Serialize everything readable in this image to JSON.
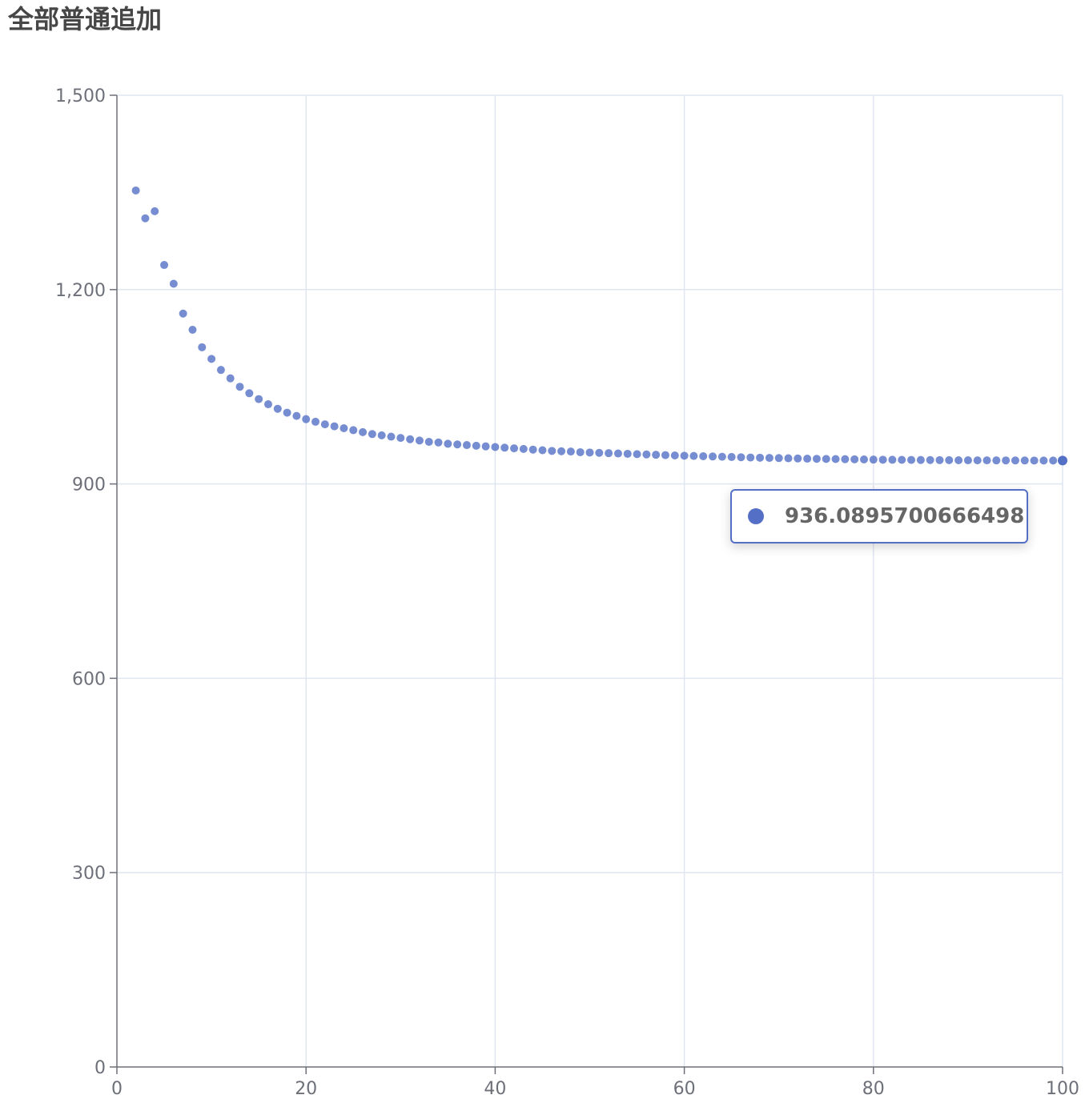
{
  "title": "全部普通追加",
  "colors": {
    "series": "#5470c6",
    "axis": "#6e7079",
    "grid": "#e0e6f1",
    "title": "#464646"
  },
  "tooltip": {
    "marker_icon": "circle-dot-icon",
    "value": "936.0895700666498"
  },
  "chart_data": {
    "type": "scatter",
    "title": "全部普通追加",
    "xlabel": "",
    "ylabel": "",
    "xlim": [
      0,
      100
    ],
    "ylim": [
      0,
      1500
    ],
    "grid": true,
    "legend": "none",
    "x_ticks": [
      "0",
      "20",
      "40",
      "60",
      "80",
      "100"
    ],
    "y_ticks": [
      "0",
      "300",
      "600",
      "900",
      "1,200",
      "1,500"
    ],
    "x_tick_values": [
      0,
      20,
      40,
      60,
      80,
      100
    ],
    "y_tick_values": [
      0,
      300,
      600,
      900,
      1200,
      1500
    ],
    "series": [
      {
        "x": [
          2,
          3,
          4,
          5,
          6,
          7,
          8,
          9,
          10,
          11,
          12,
          13,
          14,
          15,
          16,
          17,
          18,
          19,
          20,
          21,
          22,
          23,
          24,
          25,
          26,
          27,
          28,
          29,
          30,
          31,
          32,
          33,
          34,
          35,
          36,
          37,
          38,
          39,
          40,
          41,
          42,
          43,
          44,
          45,
          46,
          47,
          48,
          49,
          50,
          51,
          52,
          53,
          54,
          55,
          56,
          57,
          58,
          59,
          60,
          61,
          62,
          63,
          64,
          65,
          66,
          67,
          68,
          69,
          70,
          71,
          72,
          73,
          74,
          75,
          76,
          77,
          78,
          79,
          80,
          81,
          82,
          83,
          84,
          85,
          86,
          87,
          88,
          89,
          90,
          91,
          92,
          93,
          94,
          95,
          96,
          97,
          98,
          99,
          100
        ],
        "y": [
          1353,
          1310,
          1321,
          1238,
          1209,
          1163,
          1138,
          1111,
          1093,
          1076,
          1063,
          1050,
          1040,
          1031,
          1023,
          1016,
          1010,
          1005,
          1000,
          996,
          992,
          989,
          986,
          983,
          980,
          977,
          975,
          973,
          971,
          969,
          967,
          965,
          964,
          962,
          961,
          960,
          959,
          958,
          957,
          956,
          955,
          954,
          953,
          952,
          951,
          950.5,
          950,
          949,
          948.5,
          948,
          947.5,
          947,
          946.5,
          946,
          945.5,
          945,
          944.5,
          944,
          943.6,
          943.2,
          942.8,
          942.4,
          942,
          941.6,
          941.2,
          940.8,
          940.5,
          940.2,
          939.9,
          939.6,
          939.3,
          939,
          938.8,
          938.6,
          938.4,
          938.2,
          938,
          937.8,
          937.6,
          937.4,
          937.3,
          937.2,
          937.1,
          937,
          936.9,
          936.8,
          936.7,
          936.6,
          936.5,
          936.45,
          936.4,
          936.35,
          936.3,
          936.25,
          936.2,
          936.17,
          936.14,
          936.11,
          936.09
        ]
      }
    ]
  }
}
